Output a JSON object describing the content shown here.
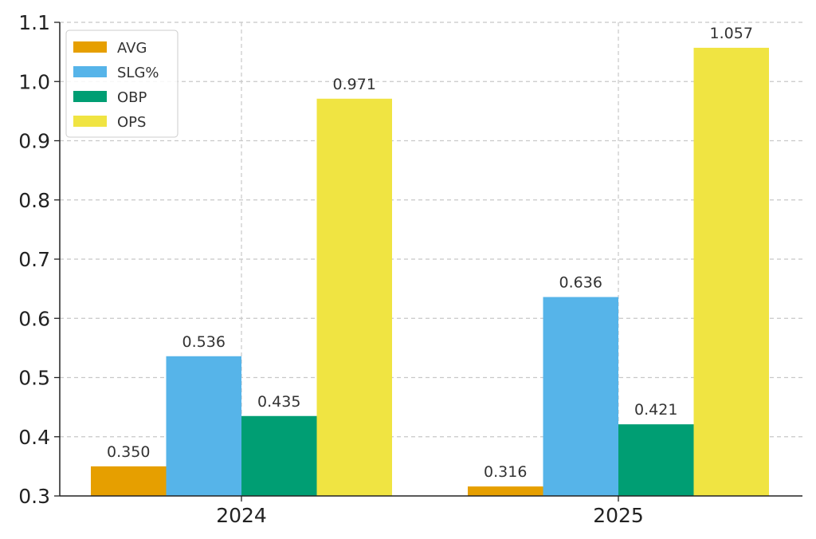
{
  "chart_data": {
    "type": "bar",
    "title": "",
    "xlabel": "",
    "ylabel": "",
    "categories": [
      "2024",
      "2025"
    ],
    "series": [
      {
        "name": "AVG",
        "values": [
          0.35,
          0.316
        ],
        "labels": [
          "0.350",
          "0.316"
        ],
        "color": "#E69F00"
      },
      {
        "name": "SLG%",
        "values": [
          0.536,
          0.636
        ],
        "labels": [
          "0.536",
          "0.636"
        ],
        "color": "#56B4E9"
      },
      {
        "name": "OBP",
        "values": [
          0.435,
          0.421
        ],
        "labels": [
          "0.435",
          "0.421"
        ],
        "color": "#009E73"
      },
      {
        "name": "OPS",
        "values": [
          0.971,
          1.057
        ],
        "labels": [
          "0.971",
          "1.057"
        ],
        "color": "#F0E442"
      }
    ],
    "ylim": [
      0.3,
      1.1
    ],
    "yticks": [
      "0.3",
      "0.4",
      "0.5",
      "0.6",
      "0.7",
      "0.8",
      "0.9",
      "1.0",
      "1.1"
    ],
    "grid": true,
    "legend_position": "top-left"
  }
}
